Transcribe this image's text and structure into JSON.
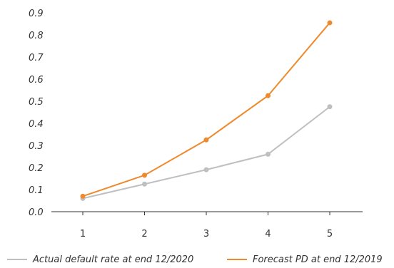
{
  "chart_data": {
    "type": "line",
    "x": [
      1,
      2,
      3,
      4,
      5
    ],
    "ylim": [
      0.0,
      0.9
    ],
    "yticks": [
      "0.0",
      "0.1",
      "0.2",
      "0.3",
      "0.4",
      "0.5",
      "0.6",
      "0.7",
      "0.8",
      "0.9"
    ],
    "xticks": [
      "1",
      "2",
      "3",
      "4",
      "5"
    ],
    "grid": false,
    "legend_position": "bottom",
    "series": [
      {
        "name": "Actual default rate at end 12/2020",
        "values": [
          0.06,
          0.125,
          0.19,
          0.26,
          0.475
        ],
        "color": "#bfbfbf"
      },
      {
        "name": "Forecast PD at end 12/2019",
        "values": [
          0.07,
          0.165,
          0.325,
          0.525,
          0.855
        ],
        "color": "#ee8a2d"
      }
    ]
  }
}
